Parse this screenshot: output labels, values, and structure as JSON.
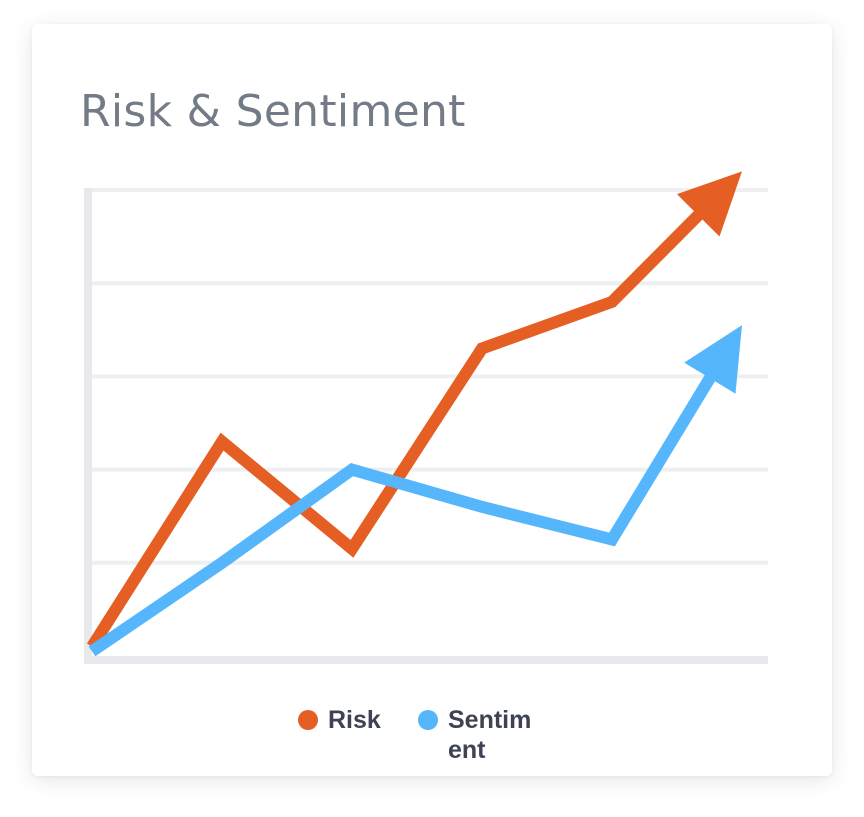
{
  "colors": {
    "risk": "#e55e23",
    "sentiment": "#56b6fc",
    "grid": "#eeeff1",
    "axis": "#e8e9ec",
    "title": "#737b87",
    "legend_text": "#3e4253"
  },
  "chart_data": {
    "type": "line",
    "title": "Risk & Sentiment",
    "xlabel": "",
    "ylabel": "",
    "x": [
      0,
      1,
      2,
      3,
      4,
      5
    ],
    "xlim": [
      0,
      5.2
    ],
    "ylim": [
      0,
      5
    ],
    "grid": true,
    "legend_position": "bottom",
    "series": [
      {
        "name": "Risk",
        "values": [
          0.1,
          2.3,
          1.15,
          3.3,
          3.8,
          5.2
        ]
      },
      {
        "name": "Sentiment",
        "values": [
          0.05,
          1.0,
          2.0,
          1.6,
          1.25,
          3.55
        ]
      }
    ],
    "end_arrows": true
  },
  "legend": {
    "items": [
      {
        "label": "Risk"
      },
      {
        "label": "Sentiment"
      }
    ]
  }
}
